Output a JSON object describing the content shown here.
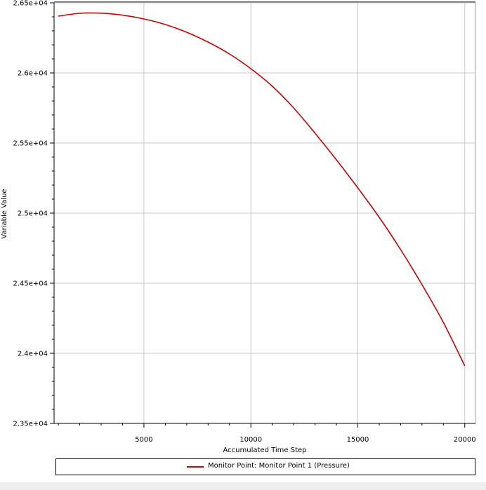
{
  "chart_data": {
    "type": "line",
    "xlabel": "Accumulated Time Step",
    "ylabel": "Variable Value",
    "xlim": [
      800,
      20500
    ],
    "ylim": [
      23500,
      26500
    ],
    "x_ticks": [
      5000,
      10000,
      15000,
      20000
    ],
    "x_tick_labels": [
      "5000",
      "10000",
      "15000",
      "20000"
    ],
    "y_ticks": [
      23500,
      24000,
      24500,
      25000,
      25500,
      26000,
      26500
    ],
    "y_tick_labels": [
      "2.35e+04",
      "2.4e+04",
      "2.45e+04",
      "2.5e+04",
      "2.55e+04",
      "2.6e+04",
      "2.65e+04"
    ],
    "grid": true,
    "legend_position": "bottom",
    "series": [
      {
        "name": "Monitor Point: Monitor Point 1 (Pressure)",
        "color": "#cc0000",
        "x": [
          1000,
          2000,
          3000,
          4000,
          5000,
          6000,
          7000,
          8000,
          9000,
          10000,
          11000,
          12000,
          13000,
          14000,
          15000,
          16000,
          17000,
          18000,
          19000,
          20000
        ],
        "y": [
          26405,
          26425,
          26426,
          26412,
          26385,
          26345,
          26290,
          26220,
          26135,
          26030,
          25905,
          25750,
          25570,
          25380,
          25180,
          24970,
          24740,
          24490,
          24220,
          23910
        ]
      }
    ]
  },
  "legend": {
    "label": "Monitor Point: Monitor Point 1 (Pressure)"
  }
}
